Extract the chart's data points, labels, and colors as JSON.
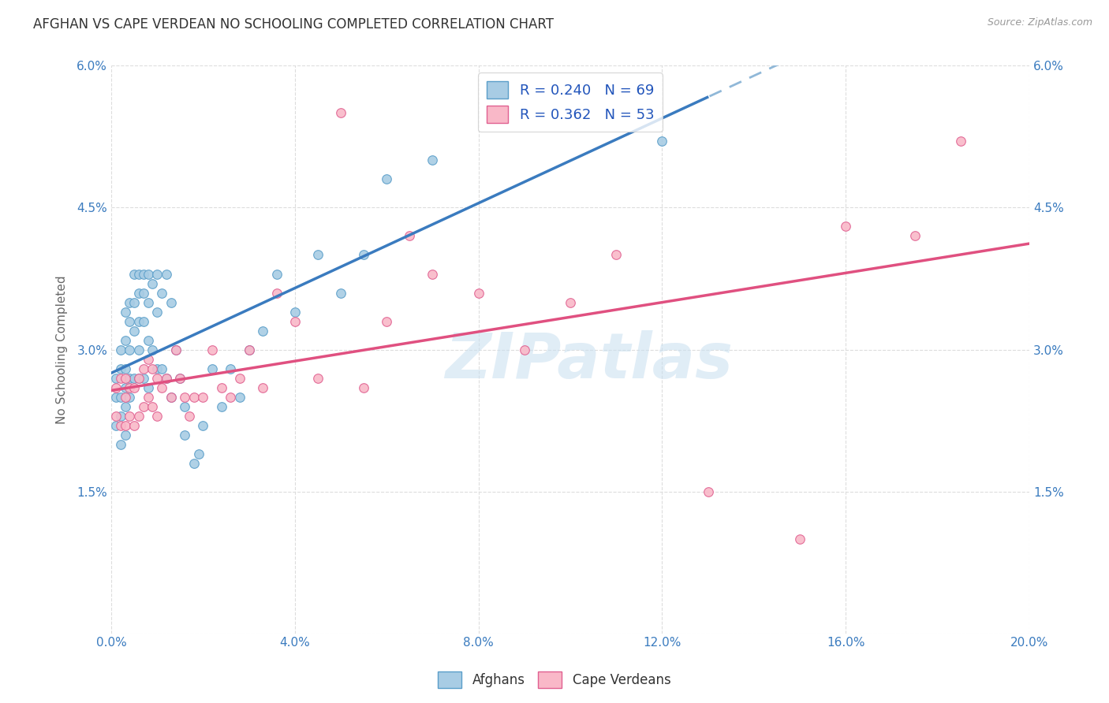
{
  "title": "AFGHAN VS CAPE VERDEAN NO SCHOOLING COMPLETED CORRELATION CHART",
  "source": "Source: ZipAtlas.com",
  "ylabel": "No Schooling Completed",
  "xlim": [
    0.0,
    0.2
  ],
  "ylim": [
    0.0,
    0.06
  ],
  "xticks": [
    0.0,
    0.04,
    0.08,
    0.12,
    0.16,
    0.2
  ],
  "yticks": [
    0.0,
    0.015,
    0.03,
    0.045,
    0.06
  ],
  "xticklabels": [
    "0.0%",
    "4.0%",
    "8.0%",
    "12.0%",
    "16.0%",
    "20.0%"
  ],
  "yticklabels": [
    "",
    "1.5%",
    "3.0%",
    "4.5%",
    "6.0%"
  ],
  "blue_scatter_color": "#a8cce4",
  "blue_edge_color": "#5a9ec9",
  "pink_scatter_color": "#f9b8c8",
  "pink_edge_color": "#e06090",
  "trend_blue": "#3a7bbf",
  "trend_pink": "#e05080",
  "trend_blue_dashed": "#90b8d8",
  "blue_R": 0.24,
  "blue_N": 69,
  "pink_R": 0.362,
  "pink_N": 53,
  "legend_label_blue": "Afghans",
  "legend_label_pink": "Cape Verdeans",
  "watermark": "ZIPatlas",
  "blue_x": [
    0.001,
    0.001,
    0.001,
    0.002,
    0.002,
    0.002,
    0.002,
    0.002,
    0.003,
    0.003,
    0.003,
    0.003,
    0.003,
    0.003,
    0.004,
    0.004,
    0.004,
    0.004,
    0.004,
    0.005,
    0.005,
    0.005,
    0.005,
    0.006,
    0.006,
    0.006,
    0.006,
    0.006,
    0.007,
    0.007,
    0.007,
    0.007,
    0.008,
    0.008,
    0.008,
    0.008,
    0.009,
    0.009,
    0.01,
    0.01,
    0.01,
    0.011,
    0.011,
    0.012,
    0.012,
    0.013,
    0.013,
    0.014,
    0.015,
    0.016,
    0.016,
    0.018,
    0.019,
    0.02,
    0.022,
    0.024,
    0.026,
    0.028,
    0.03,
    0.033,
    0.036,
    0.04,
    0.045,
    0.05,
    0.055,
    0.06,
    0.07,
    0.085,
    0.12
  ],
  "blue_y": [
    0.027,
    0.025,
    0.022,
    0.03,
    0.028,
    0.025,
    0.023,
    0.02,
    0.034,
    0.031,
    0.028,
    0.026,
    0.024,
    0.021,
    0.035,
    0.033,
    0.03,
    0.027,
    0.025,
    0.038,
    0.035,
    0.032,
    0.027,
    0.038,
    0.036,
    0.033,
    0.03,
    0.027,
    0.038,
    0.036,
    0.033,
    0.027,
    0.038,
    0.035,
    0.031,
    0.026,
    0.037,
    0.03,
    0.038,
    0.034,
    0.028,
    0.036,
    0.028,
    0.038,
    0.027,
    0.035,
    0.025,
    0.03,
    0.027,
    0.024,
    0.021,
    0.018,
    0.019,
    0.022,
    0.028,
    0.024,
    0.028,
    0.025,
    0.03,
    0.032,
    0.038,
    0.034,
    0.04,
    0.036,
    0.04,
    0.048,
    0.05,
    0.055,
    0.052
  ],
  "pink_x": [
    0.001,
    0.001,
    0.002,
    0.002,
    0.003,
    0.003,
    0.003,
    0.004,
    0.004,
    0.005,
    0.005,
    0.006,
    0.006,
    0.007,
    0.007,
    0.008,
    0.008,
    0.009,
    0.009,
    0.01,
    0.01,
    0.011,
    0.012,
    0.013,
    0.014,
    0.015,
    0.016,
    0.017,
    0.018,
    0.02,
    0.022,
    0.024,
    0.026,
    0.028,
    0.03,
    0.033,
    0.036,
    0.04,
    0.045,
    0.05,
    0.055,
    0.06,
    0.065,
    0.07,
    0.08,
    0.09,
    0.1,
    0.11,
    0.13,
    0.15,
    0.16,
    0.175,
    0.185
  ],
  "pink_y": [
    0.026,
    0.023,
    0.027,
    0.022,
    0.027,
    0.025,
    0.022,
    0.026,
    0.023,
    0.026,
    0.022,
    0.027,
    0.023,
    0.028,
    0.024,
    0.029,
    0.025,
    0.028,
    0.024,
    0.027,
    0.023,
    0.026,
    0.027,
    0.025,
    0.03,
    0.027,
    0.025,
    0.023,
    0.025,
    0.025,
    0.03,
    0.026,
    0.025,
    0.027,
    0.03,
    0.026,
    0.036,
    0.033,
    0.027,
    0.055,
    0.026,
    0.033,
    0.042,
    0.038,
    0.036,
    0.03,
    0.035,
    0.04,
    0.015,
    0.01,
    0.043,
    0.042,
    0.052
  ]
}
